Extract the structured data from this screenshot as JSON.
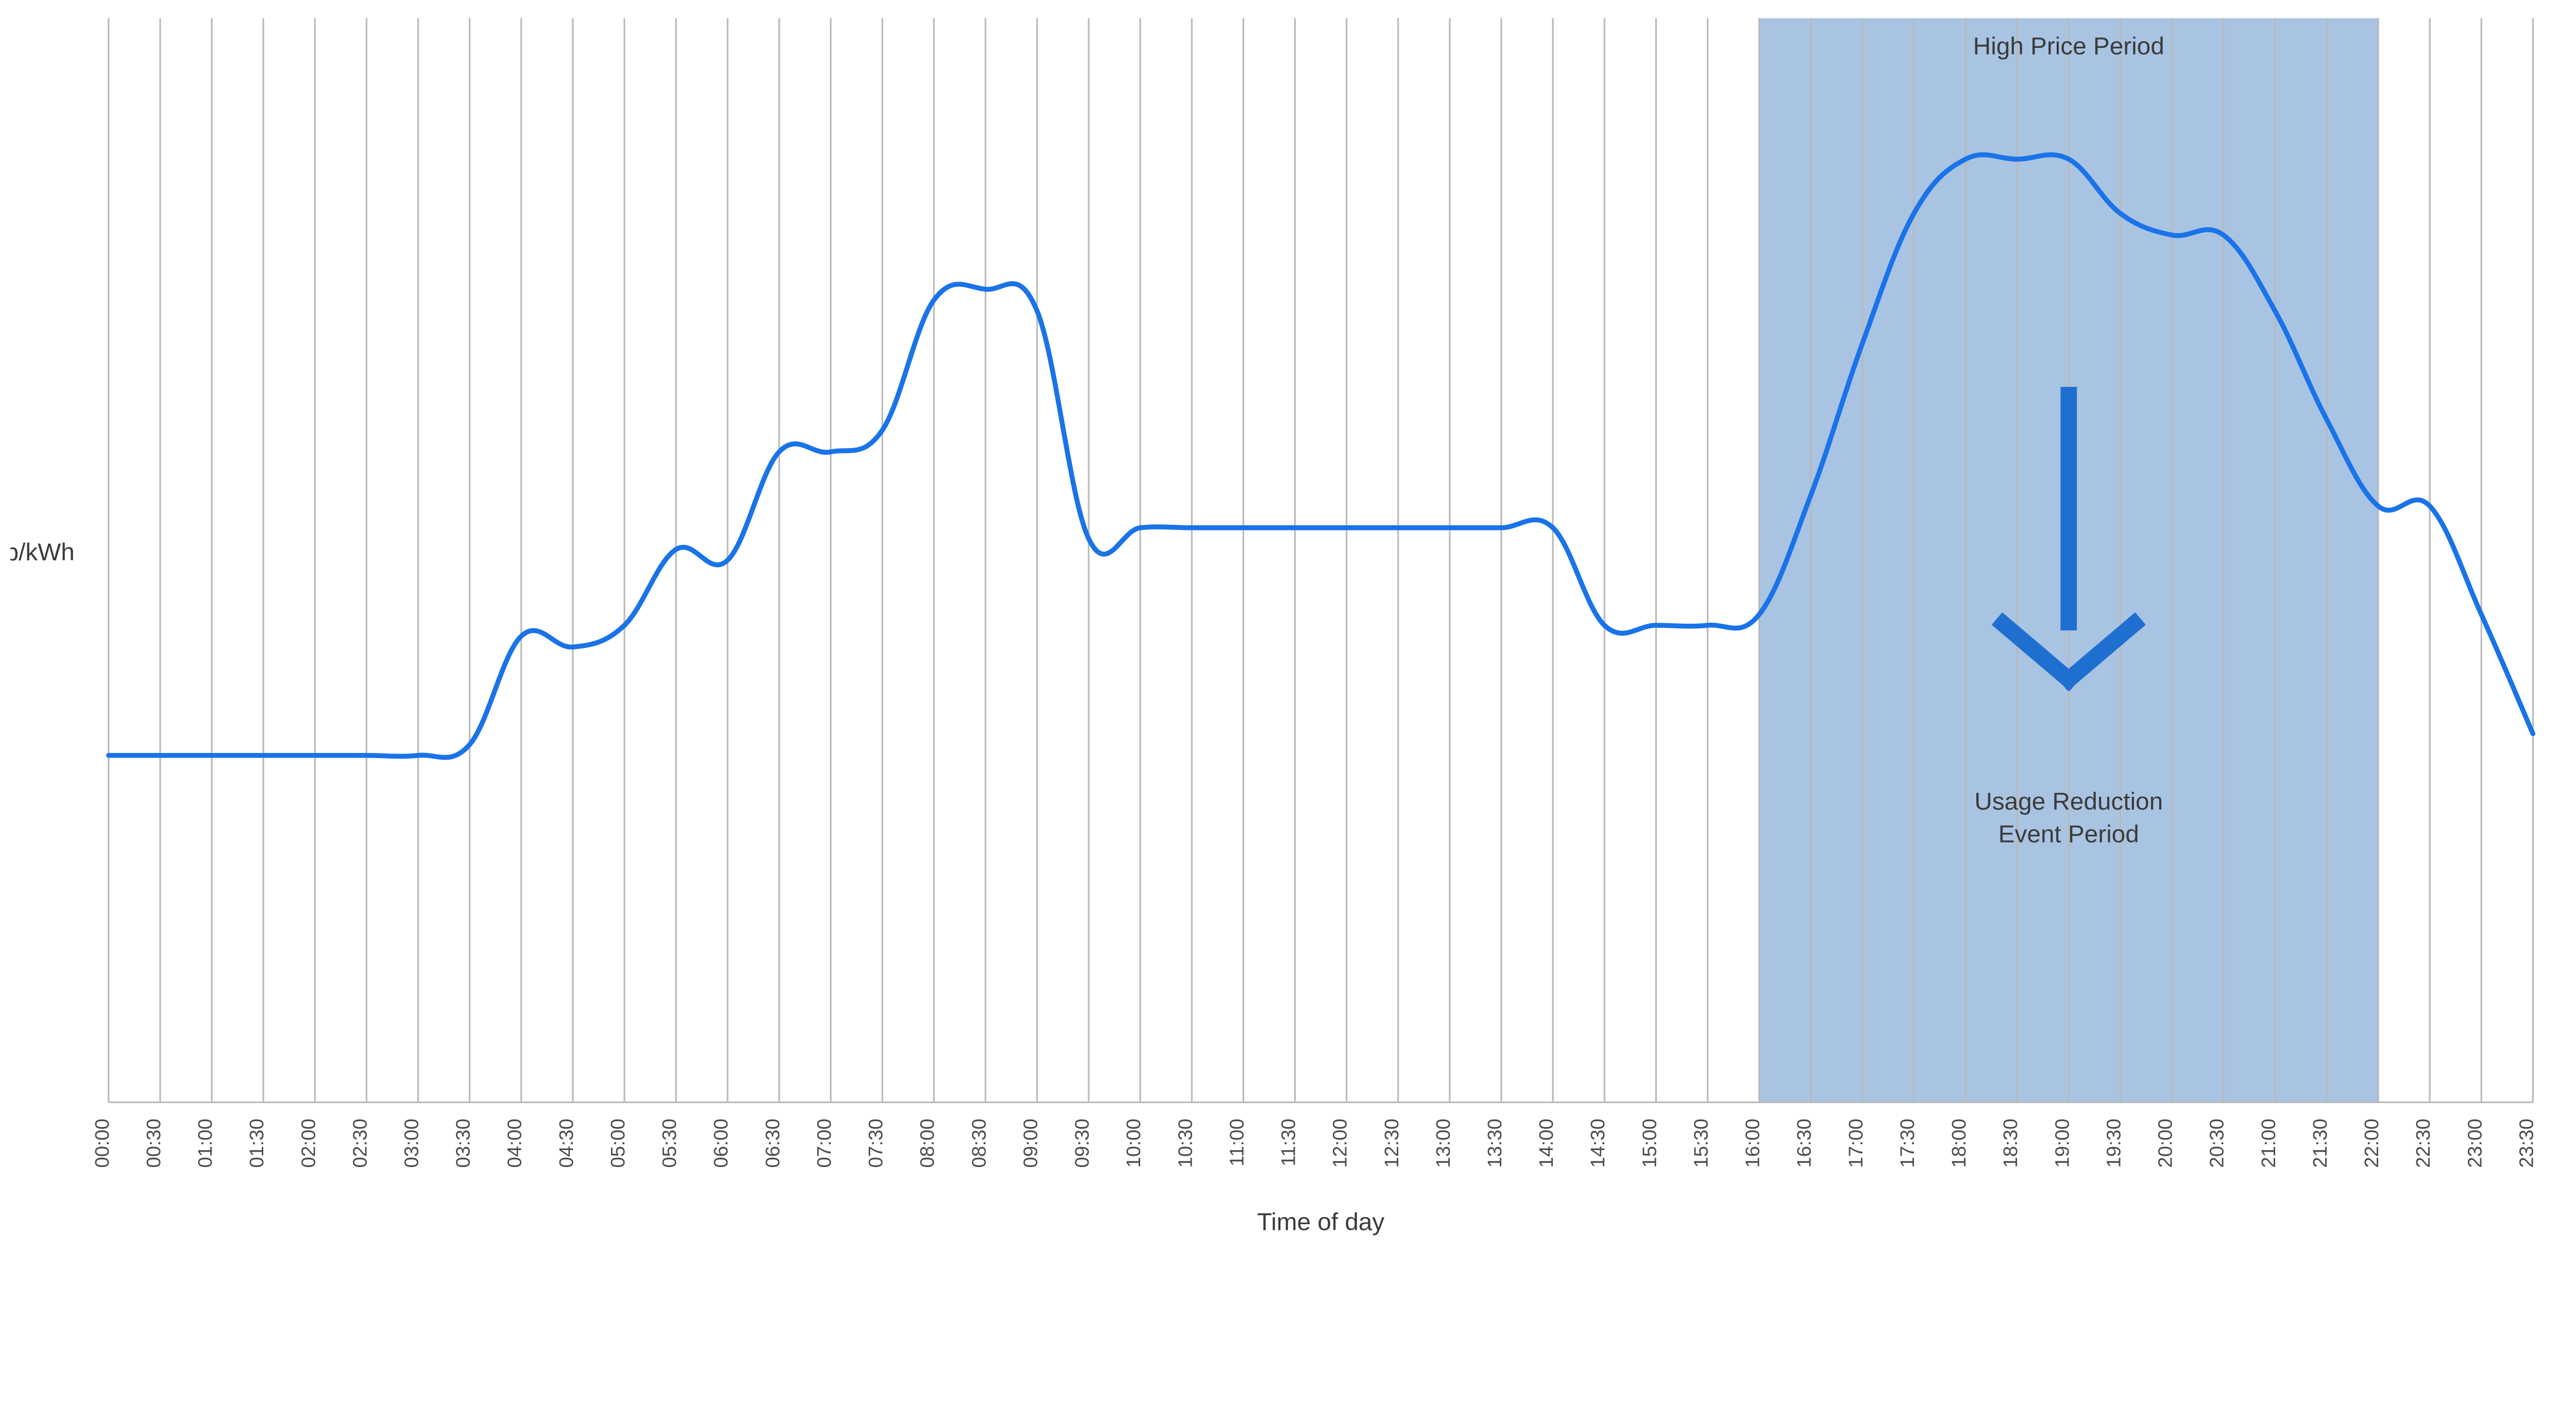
{
  "chart": {
    "type": "line",
    "y_axis_title": "p/kWh",
    "x_axis_title": "Time of day",
    "background_color": "#ffffff",
    "grid_color": "#b9b9b9",
    "grid_line_width": 1,
    "line_color": "#1a73e8",
    "line_width": 3,
    "highlight_band": {
      "start_idx": 32,
      "end_idx": 44,
      "color": "#a9c4e2",
      "opacity": 1.0
    },
    "x_labels": [
      "00:00",
      "00:30",
      "01:00",
      "01:30",
      "02:00",
      "02:30",
      "03:00",
      "03:30",
      "04:00",
      "04:30",
      "05:00",
      "05:30",
      "06:00",
      "06:30",
      "07:00",
      "07:30",
      "08:00",
      "08:30",
      "09:00",
      "09:30",
      "10:00",
      "10:30",
      "11:00",
      "11:30",
      "12:00",
      "12:30",
      "13:00",
      "13:30",
      "14:00",
      "14:30",
      "15:00",
      "15:30",
      "16:00",
      "16:30",
      "17:00",
      "17:30",
      "18:00",
      "18:30",
      "19:00",
      "19:30",
      "20:00",
      "20:30",
      "21:00",
      "21:30",
      "22:00",
      "22:30",
      "23:00",
      "23:30"
    ],
    "y_range": [
      0,
      100
    ],
    "series": {
      "values": [
        32,
        32,
        32,
        32,
        32,
        32,
        32,
        33,
        43,
        42,
        44,
        51,
        50,
        60,
        60,
        62,
        74,
        75,
        73,
        52,
        53,
        53,
        53,
        53,
        53,
        53,
        53,
        53,
        53,
        44,
        44,
        44,
        45,
        56,
        70,
        82,
        87,
        87,
        87,
        82,
        80,
        80,
        73,
        63,
        55,
        55,
        45,
        34
      ]
    },
    "annotations": {
      "top_label": "High Price Period",
      "bottom_label_line1": "Usage Reduction",
      "bottom_label_line2": "Event Period",
      "arrow_color": "#1f6fd1",
      "arrow_stroke_width": 10,
      "text_color": "#3b3b3b",
      "text_fontsize": 15
    },
    "tick_label_fontsize": 12,
    "tick_label_color": "#4b4b4b",
    "axis_title_fontsize": 15
  }
}
